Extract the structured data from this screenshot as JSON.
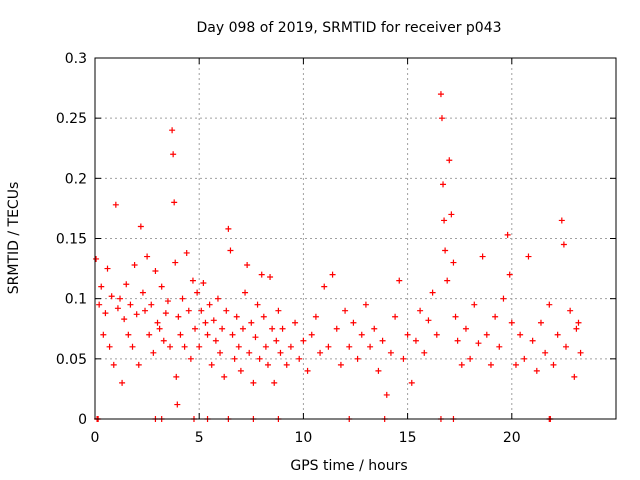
{
  "chart_data": {
    "type": "scatter",
    "title": "Day 098 of 2019, SRMTID for receiver p043",
    "xlabel": "GPS time / hours",
    "ylabel": "SRMTID / TECUs",
    "xlim": [
      0,
      25
    ],
    "ylim": [
      0,
      0.3
    ],
    "xticks": [
      0,
      5,
      10,
      15,
      20
    ],
    "yticks": [
      0,
      0.05,
      0.1,
      0.15,
      0.2,
      0.25,
      0.3
    ],
    "ytick_labels": [
      "0",
      "0.05",
      "0.1",
      "0.15",
      "0.2",
      "0.25",
      "0.3"
    ],
    "grid": true,
    "marker": "+",
    "color": "#ff0000",
    "series": [
      {
        "name": "SRMTID",
        "points": [
          [
            0.05,
            0.133
          ],
          [
            0.2,
            0.095
          ],
          [
            0.3,
            0.11
          ],
          [
            0.4,
            0.07
          ],
          [
            0.5,
            0.088
          ],
          [
            0.6,
            0.125
          ],
          [
            0.7,
            0.06
          ],
          [
            0.8,
            0.102
          ],
          [
            0.9,
            0.045
          ],
          [
            1.0,
            0.178
          ],
          [
            1.1,
            0.092
          ],
          [
            1.2,
            0.1
          ],
          [
            1.3,
            0.03
          ],
          [
            1.4,
            0.083
          ],
          [
            1.5,
            0.112
          ],
          [
            1.6,
            0.07
          ],
          [
            1.7,
            0.095
          ],
          [
            1.8,
            0.06
          ],
          [
            1.9,
            0.128
          ],
          [
            2.0,
            0.087
          ],
          [
            2.1,
            0.045
          ],
          [
            2.2,
            0.16
          ],
          [
            2.3,
            0.105
          ],
          [
            2.4,
            0.09
          ],
          [
            2.5,
            0.135
          ],
          [
            2.6,
            0.07
          ],
          [
            2.7,
            0.095
          ],
          [
            2.8,
            0.055
          ],
          [
            2.9,
            0.123
          ],
          [
            3.0,
            0.08
          ],
          [
            3.1,
            0.075
          ],
          [
            3.2,
            0.11
          ],
          [
            3.3,
            0.065
          ],
          [
            3.4,
            0.088
          ],
          [
            3.5,
            0.098
          ],
          [
            3.6,
            0.06
          ],
          [
            3.7,
            0.24
          ],
          [
            3.75,
            0.22
          ],
          [
            3.8,
            0.18
          ],
          [
            3.85,
            0.13
          ],
          [
            3.9,
            0.035
          ],
          [
            3.95,
            0.012
          ],
          [
            4.0,
            0.085
          ],
          [
            4.1,
            0.07
          ],
          [
            4.2,
            0.1
          ],
          [
            4.3,
            0.06
          ],
          [
            4.4,
            0.138
          ],
          [
            4.5,
            0.09
          ],
          [
            4.6,
            0.05
          ],
          [
            4.7,
            0.115
          ],
          [
            4.8,
            0.075
          ],
          [
            4.9,
            0.105
          ],
          [
            5.0,
            0.06
          ],
          [
            5.1,
            0.09
          ],
          [
            5.2,
            0.113
          ],
          [
            5.3,
            0.08
          ],
          [
            5.4,
            0.07
          ],
          [
            5.5,
            0.095
          ],
          [
            5.6,
            0.045
          ],
          [
            5.7,
            0.082
          ],
          [
            5.8,
            0.065
          ],
          [
            5.9,
            0.1
          ],
          [
            6.0,
            0.055
          ],
          [
            6.1,
            0.075
          ],
          [
            6.2,
            0.035
          ],
          [
            6.3,
            0.09
          ],
          [
            6.4,
            0.158
          ],
          [
            6.5,
            0.14
          ],
          [
            6.6,
            0.07
          ],
          [
            6.7,
            0.05
          ],
          [
            6.8,
            0.085
          ],
          [
            6.9,
            0.06
          ],
          [
            7.0,
            0.04
          ],
          [
            7.1,
            0.075
          ],
          [
            7.2,
            0.105
          ],
          [
            7.3,
            0.128
          ],
          [
            7.4,
            0.055
          ],
          [
            7.5,
            0.08
          ],
          [
            7.6,
            0.03
          ],
          [
            7.7,
            0.068
          ],
          [
            7.8,
            0.095
          ],
          [
            7.9,
            0.05
          ],
          [
            8.0,
            0.12
          ],
          [
            8.1,
            0.085
          ],
          [
            8.2,
            0.06
          ],
          [
            8.3,
            0.045
          ],
          [
            8.4,
            0.118
          ],
          [
            8.5,
            0.075
          ],
          [
            8.6,
            0.03
          ],
          [
            8.7,
            0.065
          ],
          [
            8.8,
            0.09
          ],
          [
            8.9,
            0.055
          ],
          [
            9.0,
            0.075
          ],
          [
            9.2,
            0.045
          ],
          [
            9.4,
            0.06
          ],
          [
            9.6,
            0.08
          ],
          [
            9.8,
            0.05
          ],
          [
            10.0,
            0.065
          ],
          [
            10.2,
            0.04
          ],
          [
            10.4,
            0.07
          ],
          [
            10.6,
            0.085
          ],
          [
            10.8,
            0.055
          ],
          [
            11.0,
            0.11
          ],
          [
            11.2,
            0.06
          ],
          [
            11.4,
            0.12
          ],
          [
            11.6,
            0.075
          ],
          [
            11.8,
            0.045
          ],
          [
            12.0,
            0.09
          ],
          [
            12.2,
            0.06
          ],
          [
            12.4,
            0.08
          ],
          [
            12.6,
            0.05
          ],
          [
            12.8,
            0.07
          ],
          [
            13.0,
            0.095
          ],
          [
            13.2,
            0.06
          ],
          [
            13.4,
            0.075
          ],
          [
            13.6,
            0.04
          ],
          [
            13.8,
            0.065
          ],
          [
            14.0,
            0.02
          ],
          [
            14.2,
            0.055
          ],
          [
            14.4,
            0.085
          ],
          [
            14.6,
            0.115
          ],
          [
            14.8,
            0.05
          ],
          [
            15.0,
            0.07
          ],
          [
            15.2,
            0.03
          ],
          [
            15.4,
            0.065
          ],
          [
            15.6,
            0.09
          ],
          [
            15.8,
            0.055
          ],
          [
            16.0,
            0.082
          ],
          [
            16.2,
            0.105
          ],
          [
            16.4,
            0.07
          ],
          [
            16.6,
            0.27
          ],
          [
            16.65,
            0.25
          ],
          [
            16.7,
            0.195
          ],
          [
            16.75,
            0.165
          ],
          [
            16.8,
            0.14
          ],
          [
            16.9,
            0.115
          ],
          [
            17.0,
            0.215
          ],
          [
            17.1,
            0.17
          ],
          [
            17.2,
            0.13
          ],
          [
            17.3,
            0.085
          ],
          [
            17.4,
            0.065
          ],
          [
            17.6,
            0.045
          ],
          [
            17.8,
            0.075
          ],
          [
            18.0,
            0.05
          ],
          [
            18.2,
            0.095
          ],
          [
            18.4,
            0.063
          ],
          [
            18.6,
            0.135
          ],
          [
            18.8,
            0.07
          ],
          [
            19.0,
            0.045
          ],
          [
            19.2,
            0.085
          ],
          [
            19.4,
            0.06
          ],
          [
            19.6,
            0.1
          ],
          [
            19.8,
            0.153
          ],
          [
            19.9,
            0.12
          ],
          [
            20.0,
            0.08
          ],
          [
            20.2,
            0.045
          ],
          [
            20.4,
            0.07
          ],
          [
            20.6,
            0.05
          ],
          [
            20.8,
            0.135
          ],
          [
            21.0,
            0.065
          ],
          [
            21.2,
            0.04
          ],
          [
            21.4,
            0.08
          ],
          [
            21.6,
            0.055
          ],
          [
            21.8,
            0.095
          ],
          [
            22.0,
            0.045
          ],
          [
            22.2,
            0.07
          ],
          [
            22.4,
            0.165
          ],
          [
            22.5,
            0.145
          ],
          [
            22.6,
            0.06
          ],
          [
            22.8,
            0.09
          ],
          [
            23.0,
            0.035
          ],
          [
            23.1,
            0.075
          ],
          [
            23.2,
            0.08
          ],
          [
            23.3,
            0.055
          ]
        ]
      }
    ],
    "zero_markers_x": [
      0.1,
      0.15,
      2.9,
      3.2,
      4.75,
      5.4,
      6.4,
      7.6,
      8.8,
      12.2,
      13.9,
      16.6,
      17.2,
      21.8,
      21.85
    ]
  }
}
